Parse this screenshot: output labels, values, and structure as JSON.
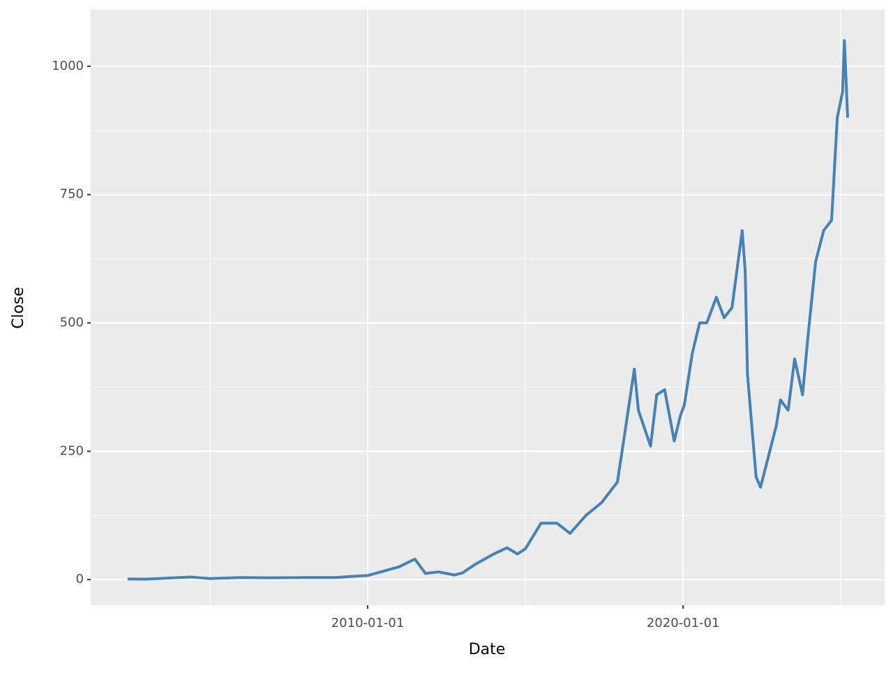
{
  "chart_data": {
    "type": "line",
    "x_label": "Date",
    "y_label": "Close",
    "x": [
      "2002-05-23",
      "2003-01-01",
      "2004-01-01",
      "2004-06-01",
      "2005-01-01",
      "2006-01-01",
      "2007-01-01",
      "2008-01-01",
      "2009-01-01",
      "2009-06-01",
      "2010-01-01",
      "2010-06-01",
      "2011-01-01",
      "2011-07-01",
      "2011-11-01",
      "2012-04-01",
      "2012-10-01",
      "2013-01-01",
      "2013-06-01",
      "2014-01-01",
      "2014-06-01",
      "2014-10-01",
      "2015-01-01",
      "2015-07-01",
      "2016-01-01",
      "2016-06-01",
      "2016-12-01",
      "2017-06-01",
      "2017-12-01",
      "2018-03-01",
      "2018-06-15",
      "2018-08-01",
      "2018-12-20",
      "2019-03-01",
      "2019-06-01",
      "2019-09-20",
      "2019-12-01",
      "2020-01-15",
      "2020-04-15",
      "2020-07-10",
      "2020-10-01",
      "2021-01-20",
      "2021-04-20",
      "2021-07-20",
      "2021-11-15",
      "2021-12-20",
      "2022-01-15",
      "2022-04-25",
      "2022-06-15",
      "2022-09-15",
      "2022-12-15",
      "2023-02-01",
      "2023-05-01",
      "2023-07-15",
      "2023-10-15",
      "2023-12-20",
      "2024-03-15",
      "2024-06-15",
      "2024-09-15",
      "2024-11-20",
      "2025-01-20",
      "2025-02-10",
      "2025-03-20"
    ],
    "values": [
      1.2,
      1,
      4,
      5,
      2,
      4,
      3.5,
      4,
      4,
      6,
      8,
      15,
      25,
      40,
      12,
      15,
      9,
      13,
      30,
      50,
      62,
      50,
      60,
      110,
      110,
      90,
      125,
      150,
      190,
      290,
      410,
      330,
      260,
      360,
      370,
      270,
      320,
      340,
      440,
      500,
      500,
      550,
      510,
      530,
      680,
      600,
      400,
      200,
      180,
      240,
      300,
      350,
      330,
      430,
      360,
      480,
      620,
      680,
      700,
      900,
      950,
      1050,
      900
    ],
    "color": "#4682b4",
    "xlim": [
      "2001-03-22",
      "2026-05-22"
    ],
    "xticks": [
      "2010-01-01",
      "2020-01-01"
    ],
    "ylim": [
      -50,
      1110
    ],
    "yticks": [
      0,
      250,
      500,
      750,
      1000
    ],
    "grid": true
  }
}
